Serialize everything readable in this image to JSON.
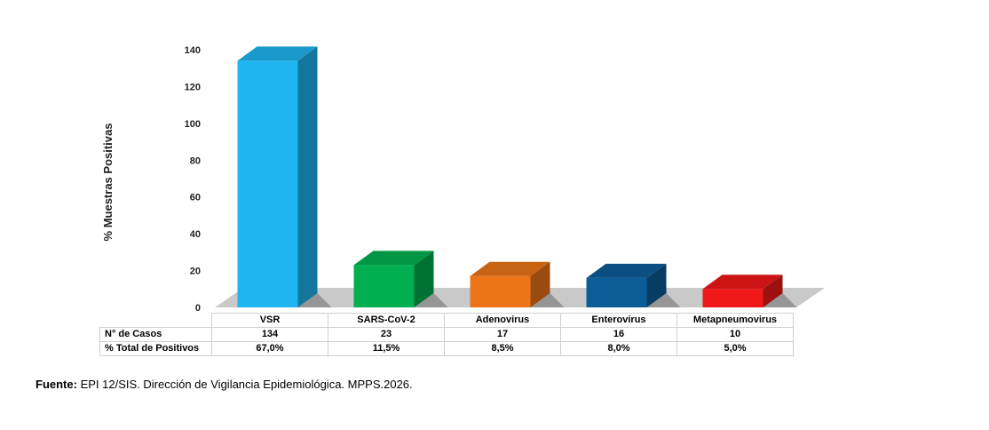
{
  "chart_data": {
    "type": "bar",
    "categories": [
      "VSR",
      "SARS-CoV-2",
      "Adenovirus",
      "Enterovirus",
      "Metapneumovirus"
    ],
    "values": [
      134,
      23,
      17,
      16,
      10
    ],
    "percentages": [
      "67,0%",
      "11,5%",
      "8,5%",
      "8,0%",
      "5,0%"
    ],
    "ylabel": "% Muestras Positivas",
    "ylim": [
      0,
      140
    ],
    "yticks": [
      "0",
      "20",
      "40",
      "60",
      "80",
      "100",
      "120",
      "140"
    ],
    "colors": [
      "#1fb5f0",
      "#00b050",
      "#ed7418",
      "#0b5d98",
      "#f01818"
    ],
    "grid": false,
    "style": "3d"
  },
  "table": {
    "row1_label": "N° de Casos",
    "row2_label": "% Total  de Positivos",
    "cases": [
      "134",
      "23",
      "17",
      "16",
      "10"
    ]
  },
  "source": {
    "label": "Fuente:",
    "text": " EPI 12/SIS. Dirección de Vigilancia Epidemiológica. MPPS.2026."
  }
}
